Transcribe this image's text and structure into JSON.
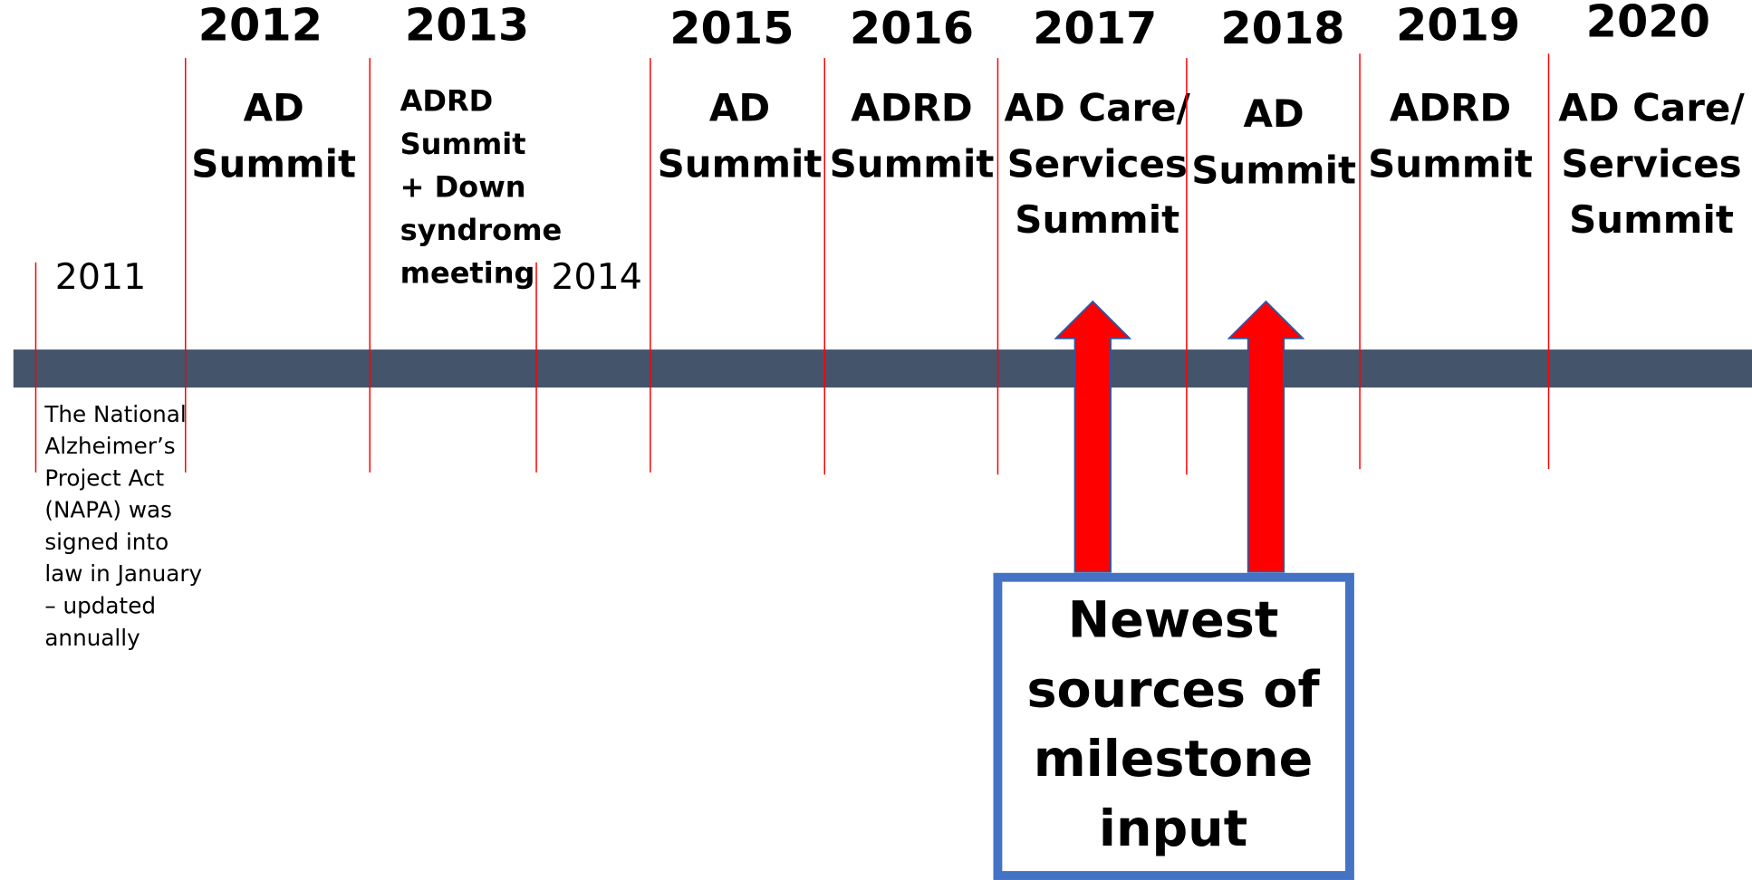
{
  "timeline": {
    "events": [
      {
        "year": "2011",
        "note": [
          "The National",
          "Alzheimer’s",
          "Project Act",
          "(NAPA) was",
          "signed into",
          "law in January",
          "– updated",
          "annually"
        ]
      },
      {
        "year": "2012",
        "label": [
          "AD",
          "Summit"
        ]
      },
      {
        "year": "2013",
        "label": [
          "ADRD",
          "Summit",
          "+ Down",
          "syndrome",
          "meeting"
        ]
      },
      {
        "year": "2014"
      },
      {
        "year": "2015",
        "label": [
          "AD",
          "Summit"
        ]
      },
      {
        "year": "2016",
        "label": [
          "ADRD",
          "Summit"
        ]
      },
      {
        "year": "2017",
        "label": [
          "AD Care/",
          "Services",
          "Summit"
        ]
      },
      {
        "year": "2018",
        "label": [
          "AD",
          "Summit"
        ]
      },
      {
        "year": "2019",
        "label": [
          "ADRD",
          "Summit"
        ]
      },
      {
        "year": "2020",
        "label": [
          "AD Care/",
          "Services",
          "Summit"
        ]
      }
    ],
    "callout": [
      "Newest",
      "sources of",
      "milestone",
      "input"
    ]
  }
}
